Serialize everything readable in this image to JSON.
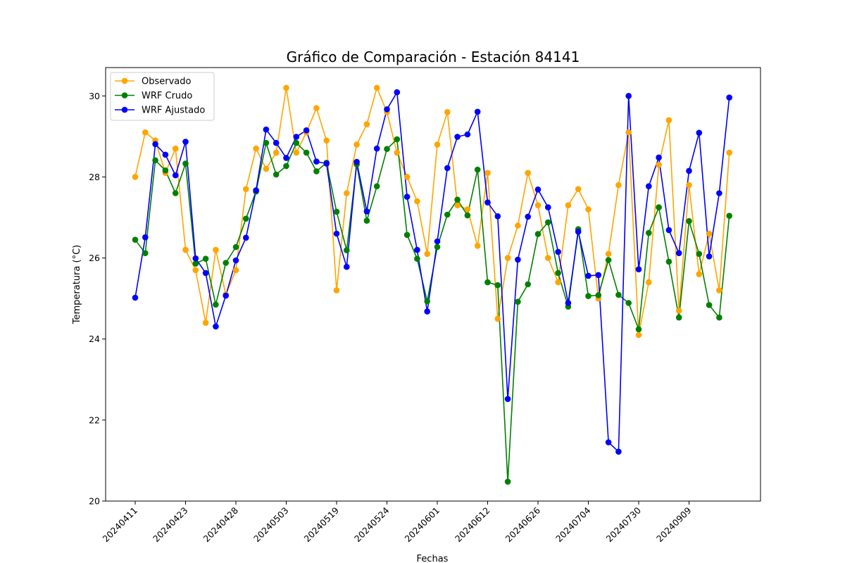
{
  "chart_data": {
    "type": "line",
    "title": "Gráfico de Comparación - Estación 84141",
    "xlabel": "Fechas",
    "ylabel": "Temperatura (°C)",
    "ylim": [
      20,
      30.7
    ],
    "yticks": [
      "20",
      "22",
      "24",
      "26",
      "28",
      "30"
    ],
    "xtick_labels": [
      "20240411",
      "20240423",
      "20240428",
      "20240503",
      "20240519",
      "20240524",
      "20240601",
      "20240612",
      "20240626",
      "20240704",
      "20240730",
      "20240909"
    ],
    "legend_position": "top-left",
    "grid": false,
    "series": [
      {
        "name": "Observado",
        "color": "#ffa500",
        "values": [
          28.0,
          29.1,
          28.9,
          28.1,
          28.7,
          26.2,
          25.7,
          24.4,
          26.2,
          25.1,
          25.7,
          27.7,
          28.7,
          28.2,
          28.6,
          30.2,
          28.6,
          29.1,
          29.7,
          28.9,
          25.2,
          27.6,
          28.8,
          29.3,
          30.2,
          29.6,
          28.6,
          28.0,
          27.4,
          26.1,
          28.8,
          29.6,
          27.3,
          27.2,
          26.3,
          28.1,
          24.5,
          26.0,
          26.8,
          28.1,
          27.3,
          26.0,
          25.4,
          27.3,
          27.7,
          27.2,
          25.0,
          26.1,
          27.8,
          29.1,
          24.1,
          25.4,
          28.3,
          29.4,
          24.7,
          27.8,
          25.6,
          26.6,
          25.2,
          28.6
        ]
      },
      {
        "name": "WRF Crudo",
        "color": "#008000",
        "values": [
          26.45,
          26.12,
          28.41,
          28.16,
          27.6,
          28.33,
          25.86,
          25.98,
          24.85,
          25.88,
          26.27,
          26.97,
          27.64,
          28.84,
          28.06,
          28.27,
          28.84,
          28.6,
          28.14,
          28.35,
          27.14,
          26.19,
          28.31,
          26.92,
          27.77,
          28.69,
          28.93,
          26.57,
          25.98,
          24.93,
          26.27,
          27.07,
          27.44,
          27.05,
          28.18,
          25.4,
          25.33,
          20.48,
          24.92,
          25.35,
          26.59,
          26.88,
          25.63,
          24.8,
          26.71,
          25.06,
          25.08,
          25.95,
          25.09,
          24.89,
          24.24,
          26.62,
          27.25,
          25.91,
          24.53,
          26.91,
          26.1,
          24.84,
          24.53,
          27.04
        ]
      },
      {
        "name": "WRF Ajustado",
        "color": "#0000ff",
        "values": [
          25.02,
          26.51,
          28.81,
          28.55,
          28.04,
          28.87,
          25.99,
          25.63,
          24.31,
          25.07,
          25.94,
          26.5,
          27.67,
          29.17,
          28.84,
          28.47,
          28.99,
          29.15,
          28.38,
          28.33,
          26.6,
          25.78,
          28.37,
          27.15,
          28.7,
          29.67,
          30.09,
          27.51,
          26.2,
          24.68,
          26.41,
          28.22,
          28.99,
          29.05,
          29.61,
          27.37,
          27.03,
          22.52,
          25.96,
          27.02,
          27.69,
          27.25,
          26.15,
          24.89,
          26.65,
          25.56,
          25.58,
          21.45,
          21.22,
          30.0,
          25.72,
          27.77,
          28.48,
          26.69,
          26.12,
          28.15,
          29.09,
          26.04,
          27.6,
          29.96
        ]
      }
    ]
  }
}
